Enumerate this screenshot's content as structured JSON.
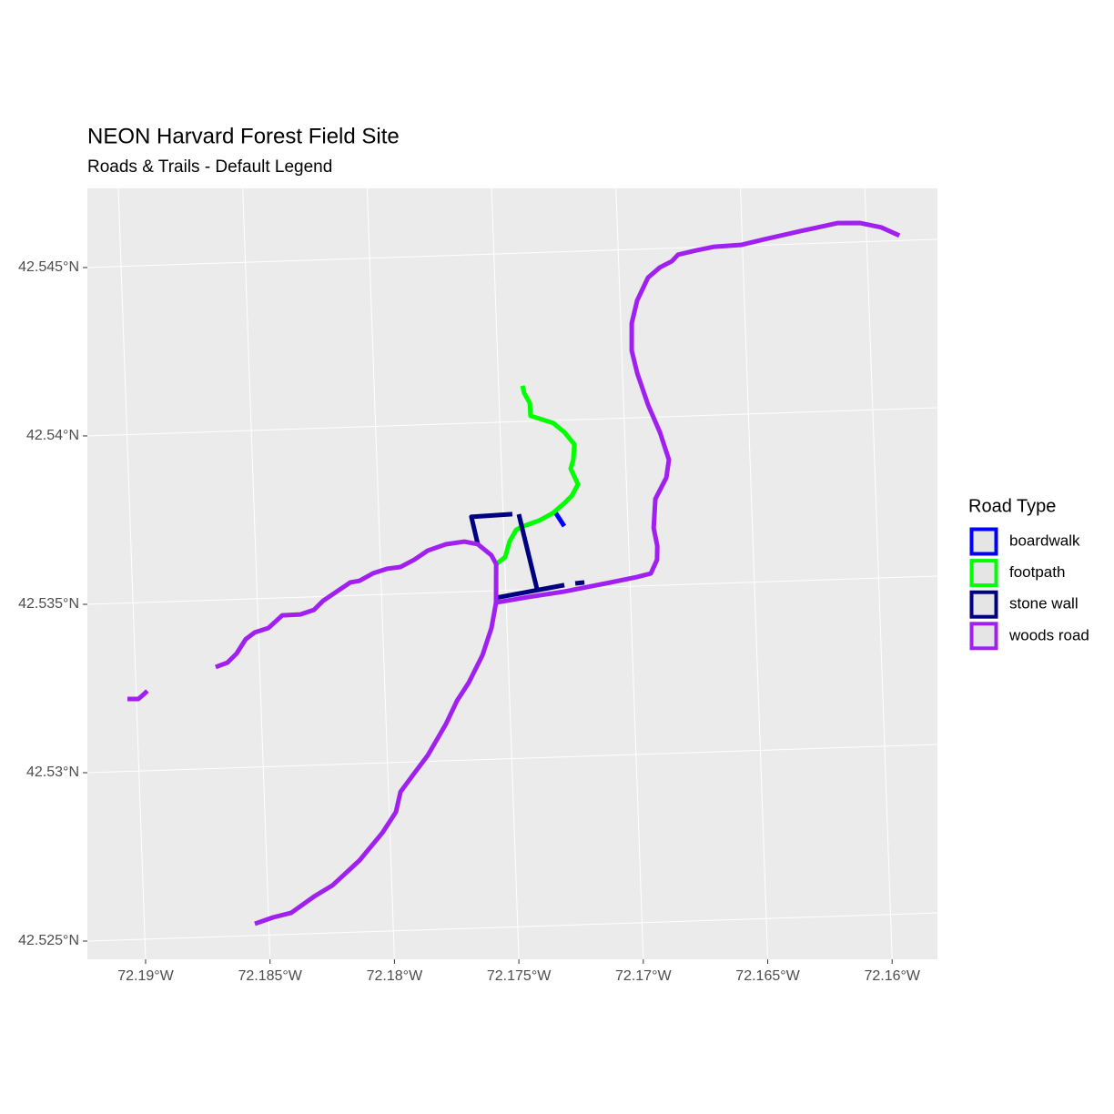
{
  "chart_data": {
    "type": "map",
    "title": "NEON Harvard Forest Field Site",
    "subtitle": "Roads & Trails - Default Legend",
    "legend_title": "Road Type",
    "grid": true,
    "xlim": [
      -72.19234,
      -72.15818
    ],
    "ylim": [
      42.52446,
      42.54735
    ],
    "xticks": [
      {
        "value": -72.19,
        "label": "72.19°W"
      },
      {
        "value": -72.185,
        "label": "72.185°W"
      },
      {
        "value": -72.18,
        "label": "72.18°W"
      },
      {
        "value": -72.175,
        "label": "72.175°W"
      },
      {
        "value": -72.17,
        "label": "72.17°W"
      },
      {
        "value": -72.165,
        "label": "72.165°W"
      },
      {
        "value": -72.16,
        "label": "72.16°W"
      }
    ],
    "yticks": [
      {
        "value": 42.525,
        "label": "42.525°N"
      },
      {
        "value": 42.53,
        "label": "42.53°N"
      },
      {
        "value": 42.535,
        "label": "42.535°N"
      },
      {
        "value": 42.54,
        "label": "42.54°N"
      },
      {
        "value": 42.545,
        "label": "42.545°N"
      }
    ],
    "series": [
      {
        "name": "boardwalk",
        "color": "#0000ff",
        "lines": [
          {
            "lon": [
              -72.1729,
              -72.17256
            ],
            "lat": [
              42.53727,
              42.53685
            ]
          }
        ]
      },
      {
        "name": "footpath",
        "color": "#00ff00",
        "lines": [
          {
            "lon": [
              -72.17404,
              -72.17398,
              -72.17377,
              -72.17376,
              -72.17285,
              -72.17242,
              -72.17204,
              -72.1721,
              -72.17222,
              -72.17195,
              -72.17222,
              -72.17253,
              -72.17302,
              -72.17357,
              -72.1742,
              -72.1745,
              -72.17478,
              -72.17498,
              -72.17535
            ],
            "lat": [
              42.54106,
              42.54084,
              42.54054,
              42.54016,
              42.53992,
              42.53964,
              42.53927,
              42.53882,
              42.53855,
              42.53808,
              42.53774,
              42.53753,
              42.53724,
              42.53704,
              42.53689,
              42.53679,
              42.53645,
              42.53599,
              42.53579
            ]
          }
        ]
      },
      {
        "name": "stone wall",
        "color": "#000080",
        "lines": [
          {
            "lon": [
              -72.17606,
              -72.17628,
              -72.17463
            ],
            "lat": [
              42.5364,
              42.53722,
              42.53726
            ]
          },
          {
            "lon": [
              -72.17437,
              -72.17374
            ],
            "lat": [
              42.53725,
              42.53499
            ]
          },
          {
            "lon": [
              -72.1754,
              -72.17264
            ],
            "lat": [
              42.53479,
              42.5351
            ]
          },
          {
            "lon": [
              -72.1722,
              -72.17183
            ],
            "lat": [
              42.53514,
              42.53516
            ]
          }
        ]
      },
      {
        "name": "woods road",
        "color": "#a020f0",
        "lines": [
          {
            "lon": [
              -72.15868,
              -72.1594,
              -72.16024,
              -72.16116,
              -72.16263,
              -72.16411,
              -72.16503,
              -72.16613,
              -72.16686,
              -72.1676,
              -72.16786,
              -72.16835,
              -72.16884,
              -72.16931,
              -72.16956,
              -72.1696,
              -72.16941,
              -72.16902,
              -72.16858,
              -72.16826,
              -72.16839,
              -72.16886,
              -72.16897,
              -72.16885,
              -72.16888,
              -72.16915,
              -72.1697,
              -72.17081,
              -72.17265,
              -72.17412,
              -72.17541
            ],
            "lat": [
              42.54515,
              42.54541,
              42.54556,
              42.54558,
              42.54538,
              42.54517,
              42.54503,
              42.545,
              42.54491,
              42.5448,
              42.54461,
              42.54444,
              42.54415,
              42.54348,
              42.54281,
              42.542,
              42.54132,
              42.54037,
              42.53954,
              42.53872,
              42.53819,
              42.53757,
              42.53671,
              42.53617,
              42.53576,
              42.53536,
              42.53527,
              42.53513,
              42.53491,
              42.53478,
              42.53465
            ]
          },
          {
            "lon": [
              -72.17541,
              -72.17563,
              -72.17603,
              -72.17662,
              -72.17712,
              -72.17759,
              -72.17837,
              -72.17895,
              -72.17952,
              -72.17973,
              -72.18031,
              -72.18126,
              -72.18239,
              -72.18314,
              -72.18408,
              -72.18482,
              -72.18556
            ],
            "lat": [
              42.53465,
              42.5339,
              42.5331,
              42.5323,
              42.53177,
              42.5311,
              42.53018,
              42.52965,
              42.52912,
              42.52853,
              42.52792,
              42.52713,
              42.52641,
              42.5261,
              42.52564,
              42.52552,
              42.52535
            ]
          },
          {
            "lon": [
              -72.17541,
              -72.17535,
              -72.17553,
              -72.17606,
              -72.1766,
              -72.17734,
              -72.17808,
              -72.17864,
              -72.1792,
              -72.17975,
              -72.18031,
              -72.18087,
              -72.18124,
              -72.1818,
              -72.18236,
              -72.18274,
              -72.18329,
              -72.18402,
              -72.18459,
              -72.18515,
              -72.18552,
              -72.18591,
              -72.18629,
              -72.18677
            ],
            "lat": [
              42.53465,
              42.53579,
              42.53606,
              42.5364,
              42.53649,
              42.53643,
              42.53626,
              42.536,
              42.5358,
              42.53576,
              42.53564,
              42.53543,
              42.53539,
              42.53513,
              42.53487,
              42.53461,
              42.53449,
              42.53448,
              42.53412,
              42.534,
              42.53381,
              42.53339,
              42.53313,
              42.53301
            ]
          },
          {
            "lon": [
              -72.19036,
              -72.18992,
              -72.1897,
              -72.18955
            ],
            "lat": [
              42.53215,
              42.53214,
              42.53227,
              42.53237
            ]
          }
        ]
      }
    ]
  }
}
